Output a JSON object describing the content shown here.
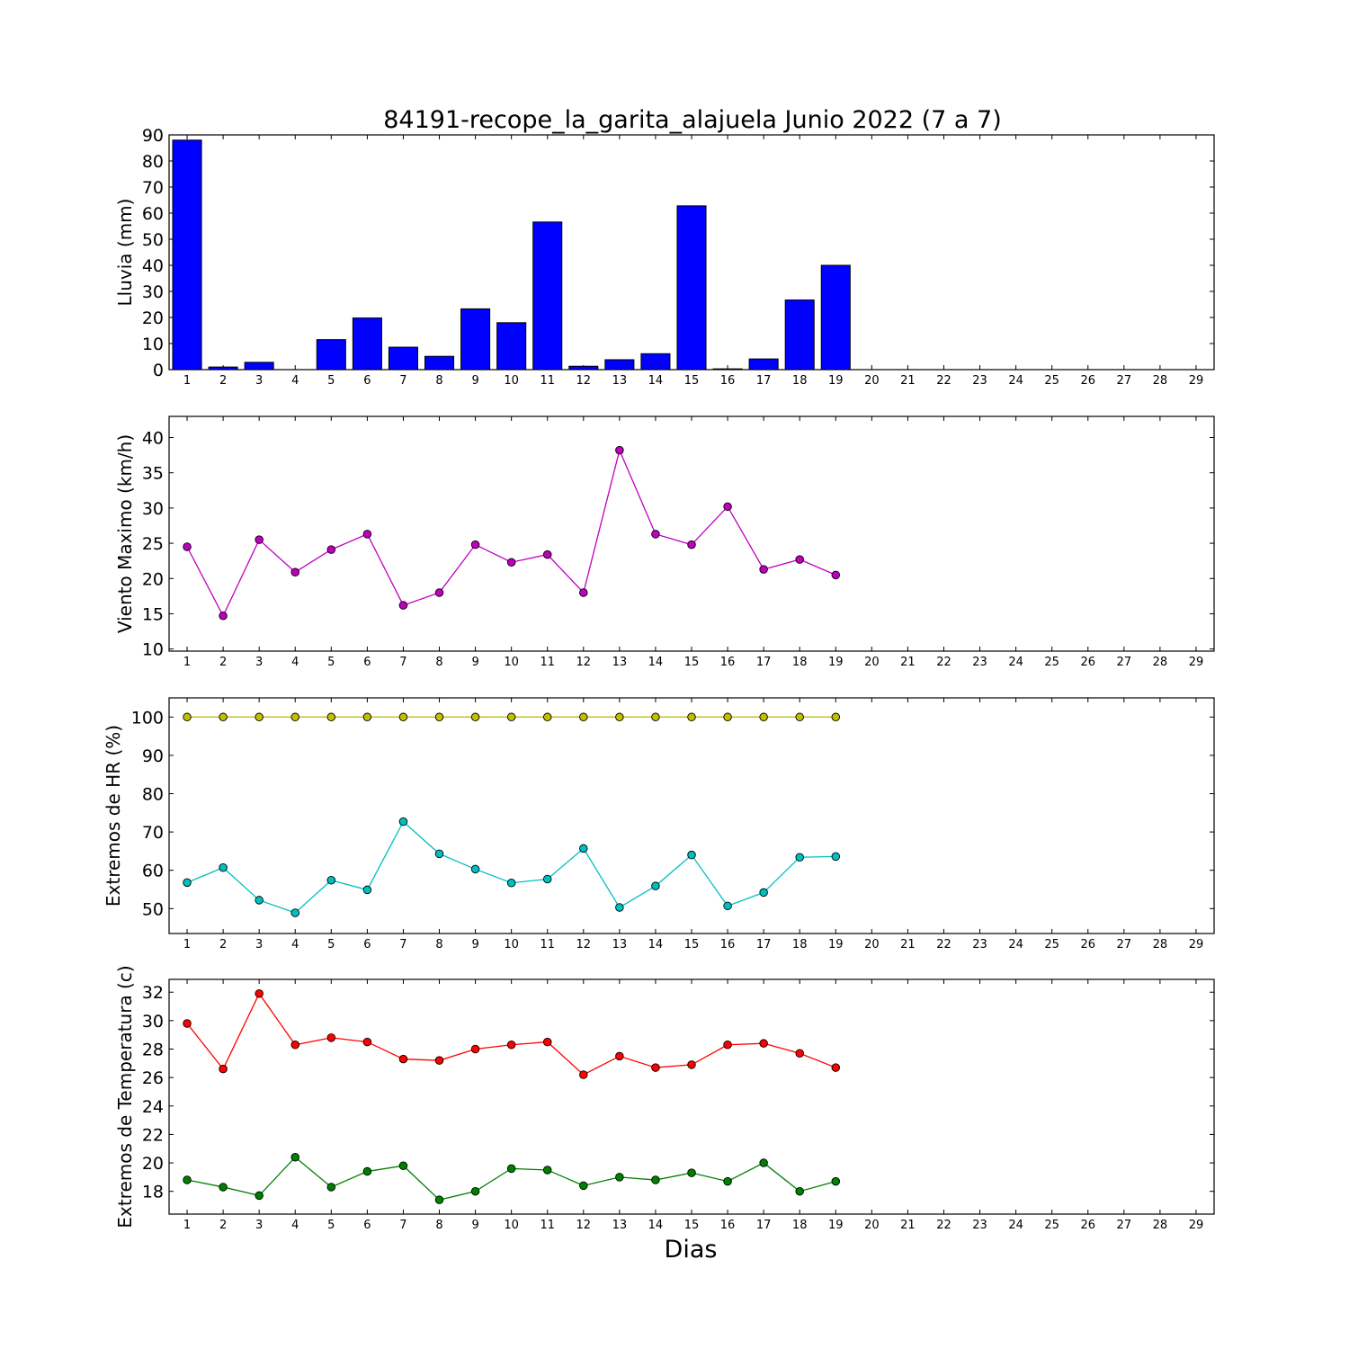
{
  "title": "84191-recope_la_garita_alajuela Junio 2022  (7 a 7)",
  "xlabel": "Dias",
  "colors": {
    "rain": "#0000ff",
    "wind": "#bf00bf",
    "hr_max": "#bfbf00",
    "hr_min": "#00bfbf",
    "temp_max": "#ff0000",
    "temp_min": "#008000"
  },
  "chart_data": [
    {
      "type": "bar",
      "title": "84191-recope_la_garita_alajuela Junio 2022  (7 a 7)",
      "ylabel": "Lluvia (mm)",
      "xlabel": "",
      "ylim": [
        0,
        90
      ],
      "xlim": [
        0.5,
        29.5
      ],
      "yticks": [
        0,
        10,
        20,
        30,
        40,
        50,
        60,
        70,
        80,
        90
      ],
      "xticks": [
        1,
        2,
        3,
        4,
        5,
        6,
        7,
        8,
        9,
        10,
        11,
        12,
        13,
        14,
        15,
        16,
        17,
        18,
        19,
        20,
        21,
        22,
        23,
        24,
        25,
        26,
        27,
        28,
        29
      ],
      "x": [
        1,
        2,
        3,
        4,
        5,
        6,
        7,
        8,
        9,
        10,
        11,
        12,
        13,
        14,
        15,
        16,
        17,
        18,
        19,
        20,
        21,
        22,
        23,
        24,
        25,
        26,
        27,
        28,
        29
      ],
      "series": [
        {
          "values": [
            88.0,
            1.0,
            2.8,
            0.0,
            11.5,
            19.8,
            8.6,
            5.1,
            23.3,
            18.0,
            56.6,
            1.3,
            3.8,
            6.1,
            62.8,
            0.3,
            4.1,
            26.7,
            40.0,
            0,
            0,
            0,
            0,
            0,
            0,
            0,
            0,
            0,
            0
          ]
        }
      ]
    },
    {
      "type": "line",
      "ylabel": "Viento Maximo (km/h)",
      "xlabel": "",
      "ylim": [
        9.7,
        43
      ],
      "xlim": [
        0.5,
        29.5
      ],
      "yticks": [
        10,
        15,
        20,
        25,
        30,
        35,
        40
      ],
      "xticks": [
        1,
        2,
        3,
        4,
        5,
        6,
        7,
        8,
        9,
        10,
        11,
        12,
        13,
        14,
        15,
        16,
        17,
        18,
        19,
        20,
        21,
        22,
        23,
        24,
        25,
        26,
        27,
        28,
        29
      ],
      "series": [
        {
          "x": [
            1,
            2,
            3,
            4,
            5,
            6,
            7,
            8,
            9,
            10,
            11,
            12,
            13,
            14,
            15,
            16,
            17,
            18,
            19
          ],
          "values": [
            24.5,
            14.7,
            25.5,
            20.9,
            24.1,
            26.3,
            16.2,
            18.0,
            24.8,
            22.3,
            23.4,
            18.0,
            38.2,
            26.3,
            24.8,
            30.2,
            21.3,
            22.7,
            20.5
          ]
        }
      ]
    },
    {
      "type": "line",
      "ylabel": "Extremos de HR (%)",
      "xlabel": "",
      "ylim": [
        43.5,
        105
      ],
      "xlim": [
        0.5,
        29.5
      ],
      "yticks": [
        50,
        60,
        70,
        80,
        90,
        100
      ],
      "xticks": [
        1,
        2,
        3,
        4,
        5,
        6,
        7,
        8,
        9,
        10,
        11,
        12,
        13,
        14,
        15,
        16,
        17,
        18,
        19,
        20,
        21,
        22,
        23,
        24,
        25,
        26,
        27,
        28,
        29
      ],
      "series": [
        {
          "x": [
            1,
            2,
            3,
            4,
            5,
            6,
            7,
            8,
            9,
            10,
            11,
            12,
            13,
            14,
            15,
            16,
            17,
            18,
            19
          ],
          "values": [
            100,
            100,
            100,
            100,
            100,
            100,
            100,
            100,
            100,
            100,
            100,
            100,
            100,
            100,
            100,
            100,
            100,
            100,
            100
          ]
        },
        {
          "x": [
            1,
            2,
            3,
            4,
            5,
            6,
            7,
            8,
            9,
            10,
            11,
            12,
            13,
            14,
            15,
            16,
            17,
            18,
            19
          ],
          "values": [
            56.8,
            60.7,
            52.2,
            48.9,
            57.4,
            54.9,
            72.7,
            64.3,
            60.3,
            56.7,
            57.7,
            65.7,
            50.3,
            55.9,
            64.0,
            50.7,
            54.2,
            63.4,
            63.6
          ]
        }
      ]
    },
    {
      "type": "line",
      "ylabel": "Extremos de Temperatura (c)",
      "xlabel": "Dias",
      "ylim": [
        16.4,
        32.9
      ],
      "xlim": [
        0.5,
        29.5
      ],
      "yticks": [
        18,
        20,
        22,
        24,
        26,
        28,
        30,
        32
      ],
      "xticks": [
        1,
        2,
        3,
        4,
        5,
        6,
        7,
        8,
        9,
        10,
        11,
        12,
        13,
        14,
        15,
        16,
        17,
        18,
        19,
        20,
        21,
        22,
        23,
        24,
        25,
        26,
        27,
        28,
        29
      ],
      "series": [
        {
          "x": [
            1,
            2,
            3,
            4,
            5,
            6,
            7,
            8,
            9,
            10,
            11,
            12,
            13,
            14,
            15,
            16,
            17,
            18,
            19
          ],
          "values": [
            29.8,
            26.6,
            31.9,
            28.3,
            28.8,
            28.5,
            27.3,
            27.2,
            28.0,
            28.3,
            28.5,
            26.2,
            27.5,
            26.7,
            26.9,
            28.3,
            28.4,
            27.7,
            26.7
          ]
        },
        {
          "x": [
            1,
            2,
            3,
            4,
            5,
            6,
            7,
            8,
            9,
            10,
            11,
            12,
            13,
            14,
            15,
            16,
            17,
            18,
            19
          ],
          "values": [
            18.8,
            18.3,
            17.7,
            20.4,
            18.3,
            19.4,
            19.8,
            17.4,
            18.0,
            19.6,
            19.5,
            18.4,
            19.0,
            18.8,
            19.3,
            18.7,
            20.0,
            18.0,
            18.7
          ]
        }
      ]
    }
  ]
}
